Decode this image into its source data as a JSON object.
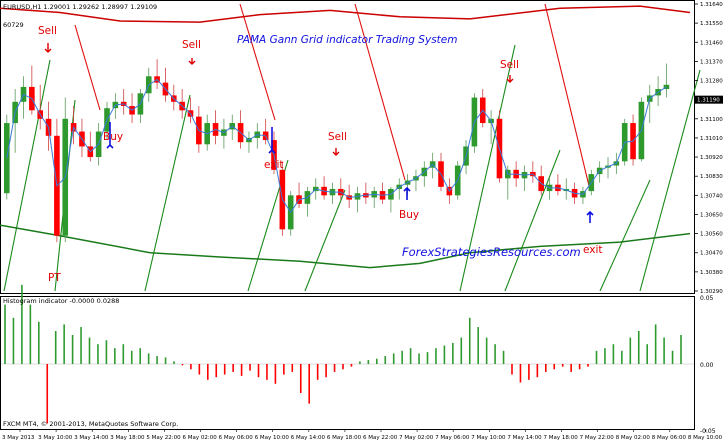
{
  "window": {
    "symbol_line": "EURUSD,H1  1.29001 1.29262 1.28997 1.29109",
    "sub_line": "60729",
    "title": "PAMA Gann Grid indicator  Trading System",
    "watermark": "ForexStrategiesResources.com"
  },
  "signals": [
    {
      "label": "Sell",
      "kind": "sell"
    },
    {
      "label": "Sell",
      "kind": "sell"
    },
    {
      "label": "Sell",
      "kind": "sell"
    },
    {
      "label": "Sell",
      "kind": "sell"
    },
    {
      "label": "Buy",
      "kind": "buy"
    },
    {
      "label": "exit",
      "kind": "buy"
    },
    {
      "label": "Buy",
      "kind": "buy"
    },
    {
      "label": "exit",
      "kind": "buy"
    },
    {
      "label": "PT",
      "kind": "pt"
    }
  ],
  "price_axis": {
    "ticks": [
      "1.31640",
      "1.31550",
      "1.31460",
      "1.31370",
      "1.31280",
      "1.31190",
      "1.31100",
      "1.31010",
      "1.30920",
      "1.30830",
      "1.30740",
      "1.30650",
      "1.30560",
      "1.30470",
      "1.30380",
      "1.30290"
    ],
    "current_price": "1.31190"
  },
  "histogram": {
    "label": "Histogram indicator -0.0000 0.0288",
    "axis": [
      "0.05",
      "0.00",
      "-0.05"
    ],
    "values": [
      0.045,
      0.035,
      0.06,
      0.045,
      0.032,
      -0.045,
      0.025,
      0.03,
      0.022,
      0.028,
      0.02,
      0.015,
      0.018,
      0.012,
      0.015,
      0.01,
      0.012,
      0.008,
      0.006,
      0.005,
      0.002,
      -0.001,
      -0.004,
      -0.008,
      -0.012,
      -0.01,
      -0.008,
      -0.006,
      -0.009,
      -0.005,
      -0.01,
      -0.012,
      -0.015,
      -0.008,
      -0.006,
      -0.022,
      -0.03,
      -0.012,
      -0.01,
      -0.006,
      -0.004,
      -0.002,
      0.002,
      0.003,
      0.004,
      0.006,
      0.008,
      0.01,
      0.012,
      0.008,
      0.009,
      0.012,
      0.014,
      0.016,
      0.02,
      0.035,
      0.028,
      0.02,
      0.015,
      0.01,
      -0.008,
      -0.014,
      -0.012,
      -0.01,
      -0.006,
      -0.004,
      -0.002,
      -0.006,
      -0.004,
      -0.002,
      0.01,
      0.012,
      0.015,
      0.01,
      0.02,
      0.025,
      0.015,
      0.03,
      0.02,
      0.01,
      0.022
    ]
  },
  "time_axis": [
    "3 May 2013",
    "3 May 10:00",
    "3 May 14:00",
    "3 May 18:00",
    "5 May 22:00",
    "6 May 02:00",
    "6 May 06:00",
    "6 May 10:00",
    "6 May 14:00",
    "6 May 18:00",
    "6 May 22:00",
    "7 May 02:00",
    "7 May 06:00",
    "7 May 10:00",
    "7 May 14:00",
    "7 May 18:00",
    "7 May 22:00",
    "8 May 02:00",
    "8 May 06:00",
    "8 May 10:00"
  ],
  "footer": "FXCM MT4, © 2001-2013, MetaQuotes Software Corp.",
  "colors": {
    "bull": "#2e9a2e",
    "bear": "#ff0000",
    "gann": "#1a8a1a",
    "gann_red": "#e01010",
    "ma": "#3a7ad8",
    "band_green": "#1a7a1a",
    "band_red": "#cc0000",
    "text_red": "#e00000",
    "text_blue": "#1010e0"
  }
}
